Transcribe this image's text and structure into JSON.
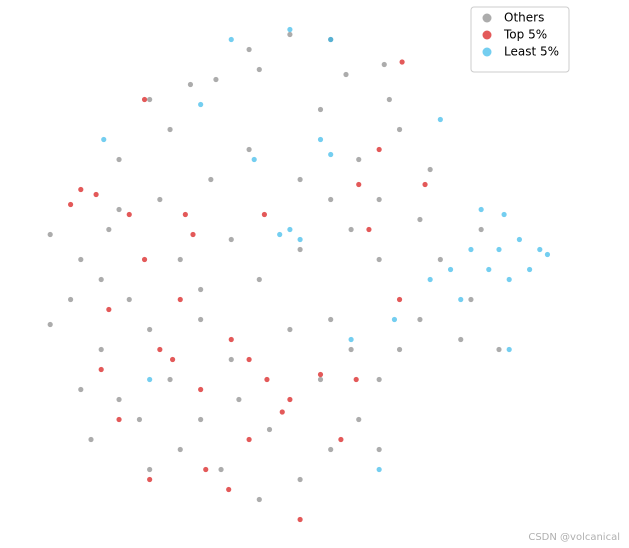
{
  "chart_data": {
    "type": "scatter",
    "legend": "upper right",
    "alpha": 0.65,
    "xlim": [
      -100,
      100
    ],
    "ylim": [
      -100,
      100
    ],
    "series": [
      {
        "name": "Others",
        "color": "#808080",
        "x": [
          -2,
          -18,
          14,
          -14,
          20,
          35,
          -41,
          -31,
          -57,
          -49,
          -69,
          41,
          25,
          2,
          -18,
          -33,
          -53,
          -73,
          -84,
          -88,
          -76,
          -65,
          -45,
          -25,
          -14,
          -37,
          -57,
          -76,
          -84,
          -69,
          -49,
          -25,
          -2,
          14,
          22,
          33,
          25,
          14,
          2,
          -14,
          -29,
          -45,
          -57,
          -61,
          -37,
          -10,
          33,
          22,
          33,
          49,
          57,
          69,
          49,
          41,
          65,
          80,
          73,
          53,
          33,
          14,
          2,
          -96,
          -96,
          -80,
          37,
          10,
          -69,
          -37,
          -22,
          10
        ],
        "y": [
          97,
          91,
          95,
          83,
          81,
          85,
          77,
          79,
          71,
          59,
          47,
          59,
          47,
          39,
          51,
          39,
          31,
          19,
          7,
          -9,
          -1,
          -9,
          7,
          15,
          -1,
          -17,
          -21,
          -29,
          -45,
          -49,
          -41,
          -33,
          -21,
          -17,
          -29,
          -41,
          -57,
          -69,
          -81,
          -89,
          -77,
          -69,
          -77,
          -57,
          -57,
          -61,
          -69,
          19,
          7,
          23,
          7,
          -9,
          -17,
          -29,
          -25,
          -29,
          19,
          43,
          31,
          31,
          11,
          17,
          -19,
          -65,
          71,
          67,
          27,
          -5,
          -49,
          -41
        ]
      },
      {
        "name": "Top 5%",
        "color": "#d40000",
        "x": [
          -84,
          -88,
          -78,
          42,
          -43,
          -40,
          -65,
          -59,
          -53,
          -48,
          -18,
          -11,
          -2,
          -5,
          -26,
          -35,
          24,
          10,
          25,
          33,
          51,
          29,
          -59,
          -69,
          2,
          -73,
          -25,
          -12,
          18,
          -45,
          -76,
          -37,
          -18,
          41,
          -57
        ],
        "y": [
          35,
          29,
          33,
          86,
          25,
          17,
          25,
          7,
          -29,
          -33,
          -33,
          -41,
          -49,
          -54,
          -85,
          -77,
          -41,
          -39,
          37,
          51,
          37,
          19,
          71,
          -57,
          -97,
          -13,
          -25,
          25,
          -65,
          -9,
          -37,
          -45,
          -65,
          -9,
          -81
        ]
      },
      {
        "name": "Least 5%",
        "color": "#2ab4e8",
        "x": [
          80,
          88,
          92,
          84,
          76,
          96,
          69,
          61,
          82,
          53,
          -2,
          2,
          -6,
          10,
          14,
          -16,
          -37,
          -2,
          14,
          57,
          73,
          39,
          33,
          -57,
          -75,
          84,
          99,
          65,
          22,
          -25
        ],
        "y": [
          11,
          15,
          3,
          -1,
          3,
          11,
          11,
          3,
          25,
          -1,
          19,
          15,
          17,
          55,
          49,
          47,
          69,
          99,
          95,
          63,
          27,
          -17,
          -77,
          -41,
          55,
          -29,
          9,
          -9,
          -25,
          95
        ]
      }
    ]
  },
  "watermark": "CSDN @volcanical"
}
